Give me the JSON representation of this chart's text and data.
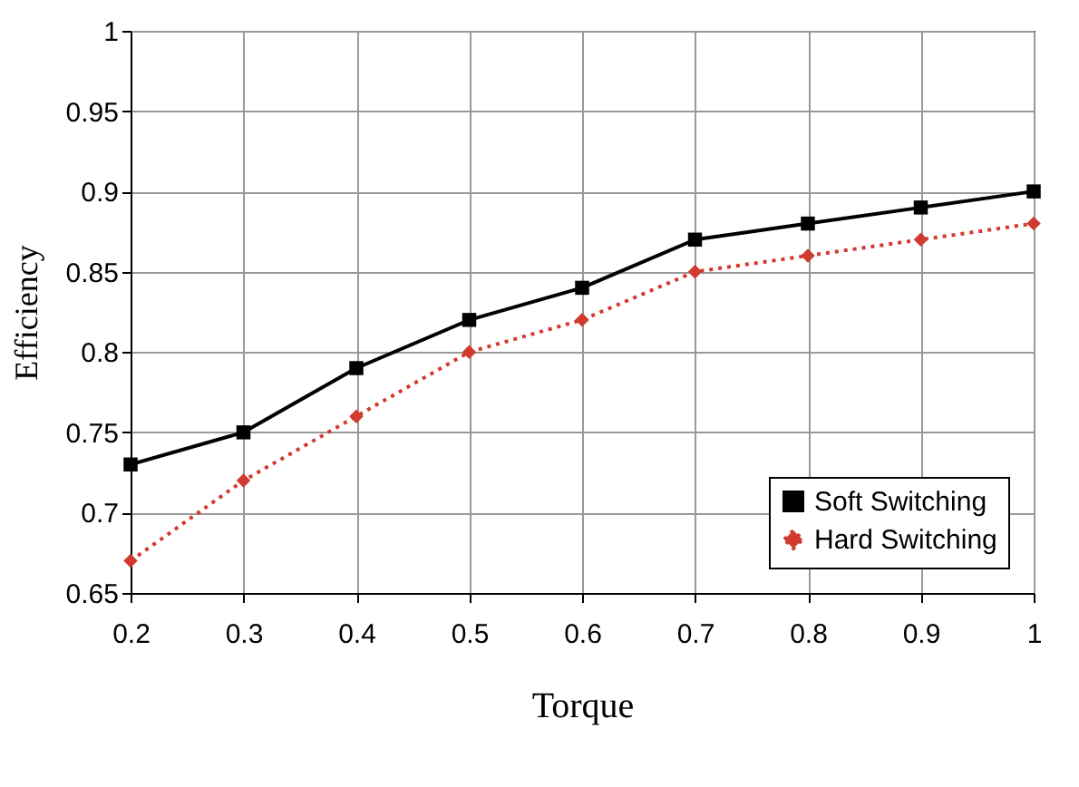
{
  "chart_data": {
    "type": "line",
    "xlabel": "Torque",
    "ylabel": "Efficiency",
    "x": [
      0.2,
      0.3,
      0.4,
      0.5,
      0.6,
      0.7,
      0.8,
      0.9,
      1
    ],
    "series": [
      {
        "name": "Soft Switching",
        "color": "#000000",
        "marker": "square",
        "line_style": "solid",
        "values": [
          0.73,
          0.75,
          0.79,
          0.82,
          0.84,
          0.87,
          0.88,
          0.89,
          0.9
        ]
      },
      {
        "name": "Hard Switching",
        "color": "#d03a2f",
        "marker": "diamond",
        "line_style": "dotted",
        "values": [
          0.67,
          0.72,
          0.76,
          0.8,
          0.82,
          0.85,
          0.86,
          0.87,
          0.88
        ]
      }
    ],
    "xlim": [
      0.2,
      1
    ],
    "xticks": [
      0.2,
      0.3,
      0.4,
      0.5,
      0.6,
      0.7,
      0.8,
      0.9,
      1
    ],
    "ylim": [
      0.65,
      1
    ],
    "yticks": [
      0.65,
      0.7,
      0.75,
      0.8,
      0.85,
      0.9,
      0.95,
      1
    ],
    "grid": true,
    "legend": "bottom right"
  }
}
